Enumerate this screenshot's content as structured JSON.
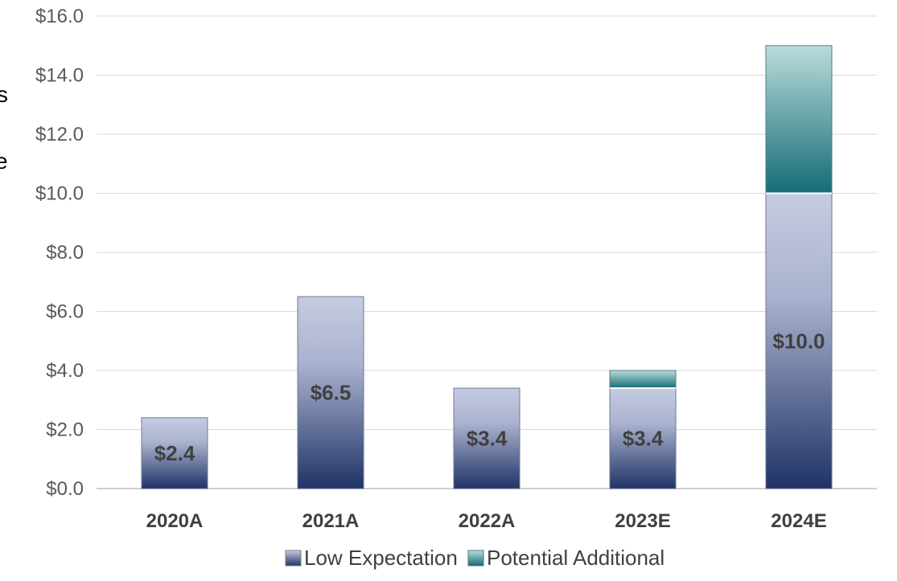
{
  "chart_data": {
    "type": "bar",
    "stacked": true,
    "categories": [
      "2020A",
      "2021A",
      "2022A",
      "2023E",
      "2024E"
    ],
    "series": [
      {
        "name": "Low Expectation",
        "values": [
          2.4,
          6.5,
          3.4,
          3.4,
          10.0
        ],
        "labels": [
          "$2.4",
          "$6.5",
          "$3.4",
          "$3.4",
          "$10.0"
        ]
      },
      {
        "name": "Potential Additional",
        "values": [
          0,
          0,
          0,
          0.6,
          5.0
        ]
      }
    ],
    "ylim": [
      0,
      16
    ],
    "yticks": [
      "$0.0",
      "$2.0",
      "$4.0",
      "$6.0",
      "$8.0",
      "$10.0",
      "$12.0",
      "$14.0",
      "$16.0"
    ],
    "ytick_values": [
      0,
      2,
      4,
      6,
      8,
      10,
      12,
      14,
      16
    ],
    "grid": true,
    "legend_position": "bottom",
    "title": "",
    "xlabel": "",
    "ylabel": "",
    "colors": {
      "low": "#1f3366",
      "potential": "#1a6b73",
      "grid": "#d9d9d9"
    }
  },
  "edge_fragments": [
    "s",
    "e"
  ]
}
